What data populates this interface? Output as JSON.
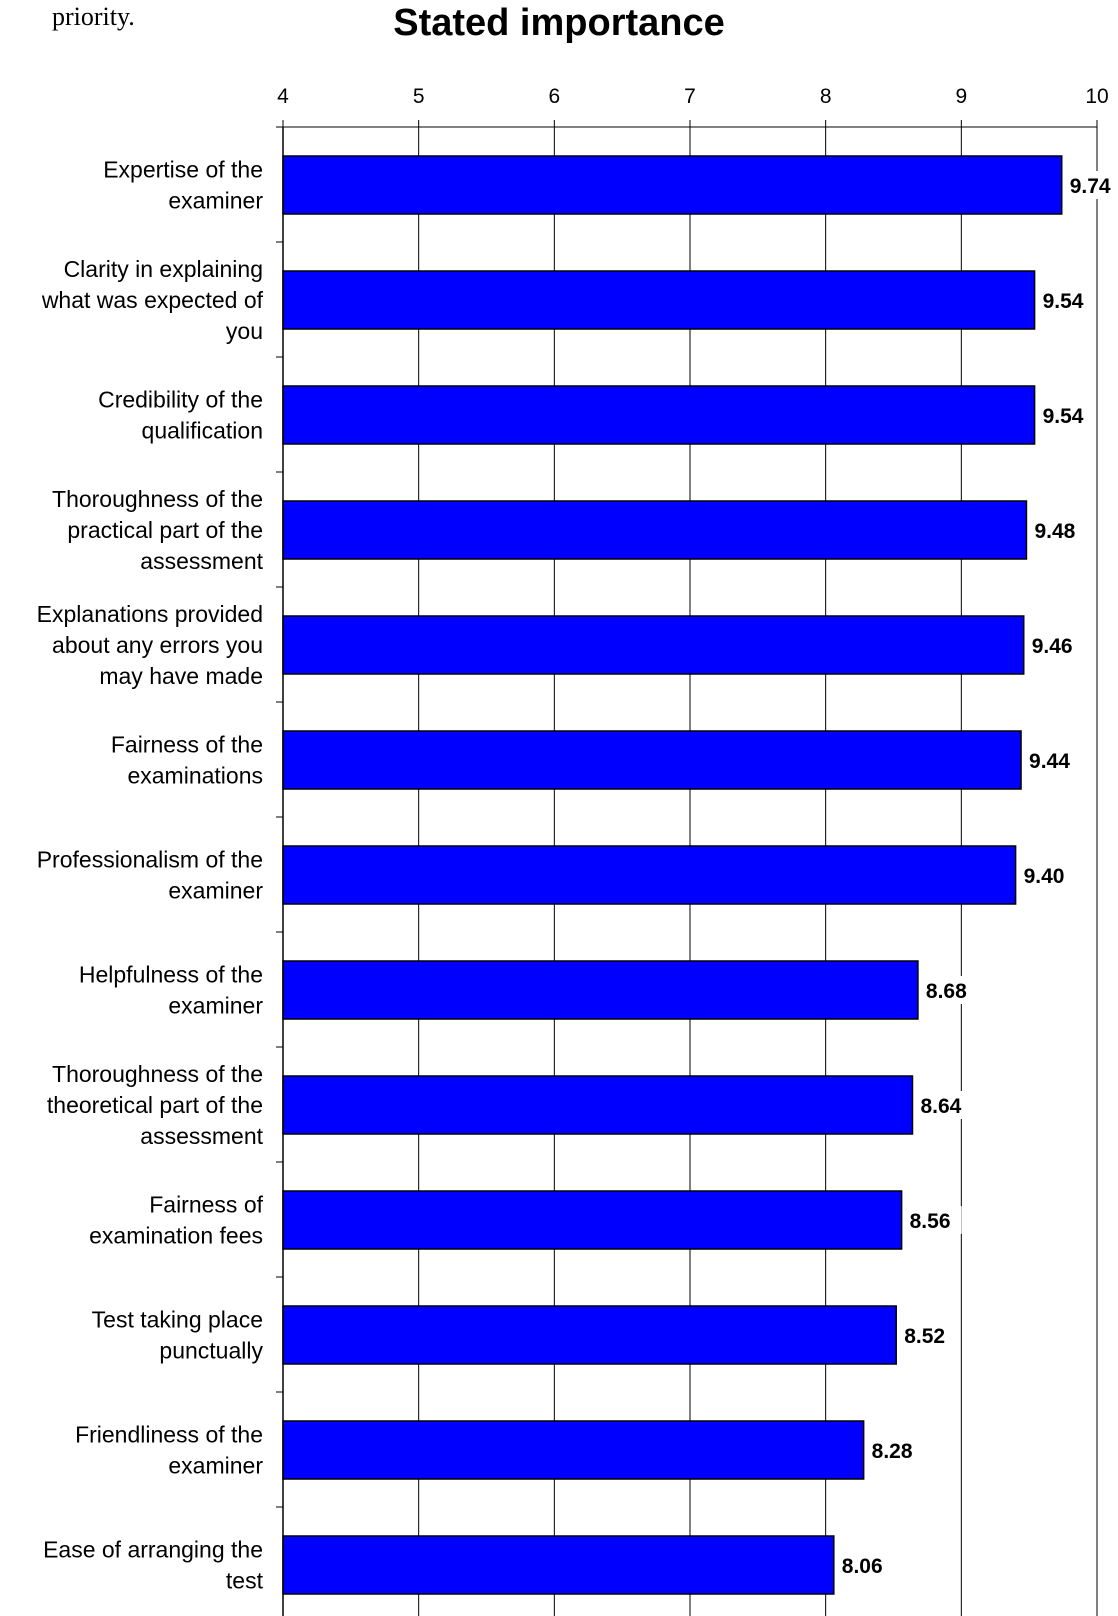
{
  "page": {
    "top_text": "priority."
  },
  "chart_data": {
    "type": "bar",
    "orientation": "horizontal",
    "title": "Stated importance",
    "xlim": [
      4,
      10
    ],
    "ticks": [
      "4",
      "5",
      "6",
      "7",
      "8",
      "9",
      "10"
    ],
    "grid": true,
    "bar_color": "#0000FF",
    "categories": [
      [
        "Expertise of the",
        "examiner"
      ],
      [
        "Clarity in explaining",
        "what was expected of",
        "you"
      ],
      [
        "Credibility of the",
        "qualification"
      ],
      [
        "Thoroughness of the",
        "practical part of the",
        "assessment"
      ],
      [
        "Explanations provided",
        "about any errors you",
        "may have made"
      ],
      [
        "Fairness of the",
        "examinations"
      ],
      [
        "Professionalism of the",
        "examiner"
      ],
      [
        "Helpfulness of the",
        "examiner"
      ],
      [
        "Thoroughness of the",
        "theoretical part of the",
        "assessment"
      ],
      [
        "Fairness of",
        "examination fees"
      ],
      [
        "Test taking place",
        "punctually"
      ],
      [
        "Friendliness of the",
        "examiner"
      ],
      [
        "Ease of arranging the",
        "test"
      ]
    ],
    "values": [
      9.74,
      9.54,
      9.54,
      9.48,
      9.46,
      9.44,
      9.4,
      8.68,
      8.64,
      8.56,
      8.52,
      8.28,
      8.06
    ],
    "value_labels": [
      "9.74",
      "9.54",
      "9.54",
      "9.48",
      "9.46",
      "9.44",
      "9.40",
      "8.68",
      "8.64",
      "8.56",
      "8.52",
      "8.28",
      "8.06"
    ]
  }
}
